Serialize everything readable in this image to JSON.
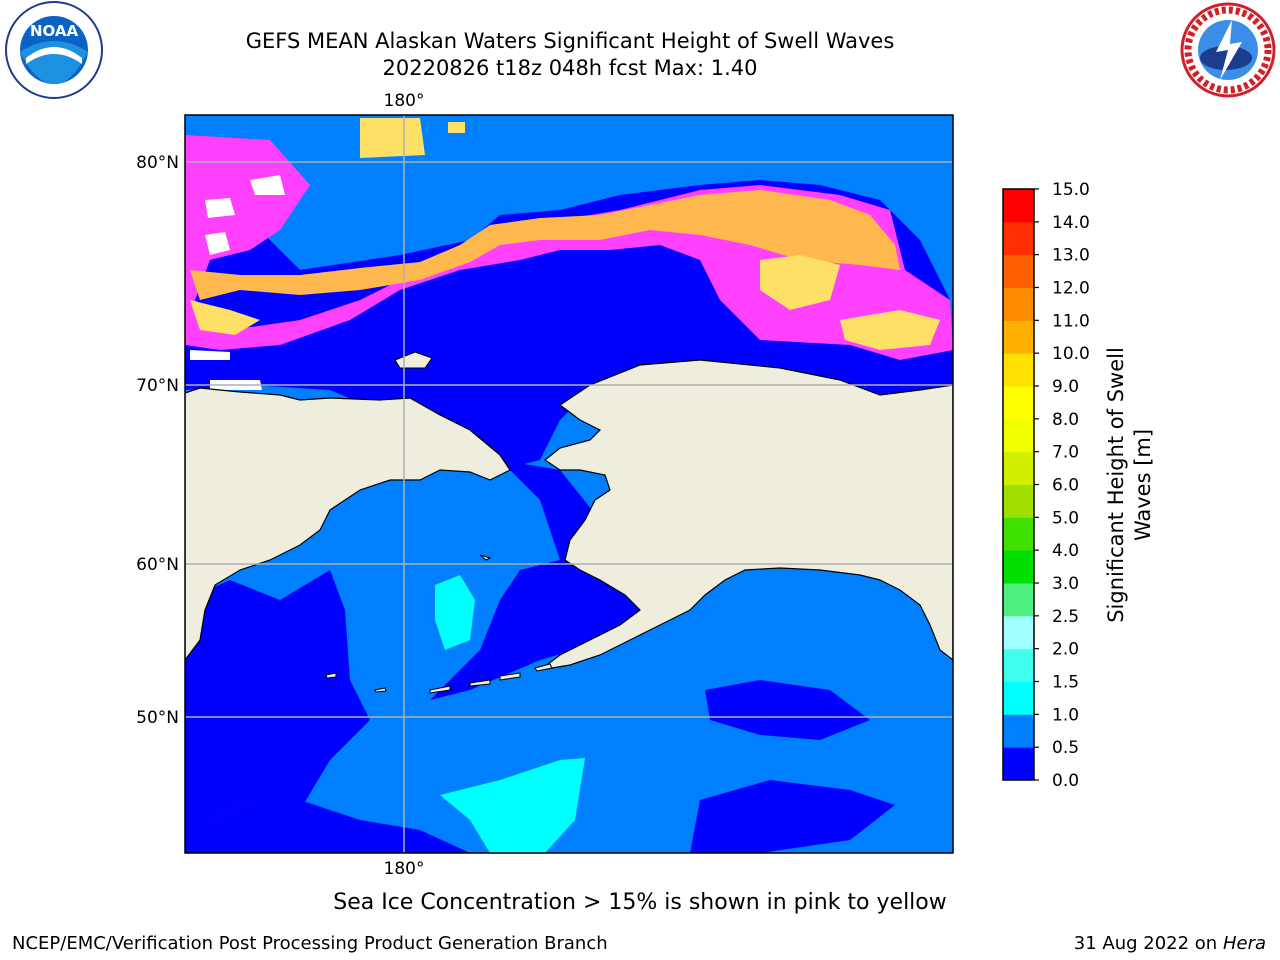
{
  "header": {
    "title_line1": "GEFS MEAN Alaskan Waters Significant Height of Swell Waves",
    "title_line2": "20220826 t18z 048h fcst   Max: 1.40"
  },
  "logos": {
    "left": {
      "name": "noaa-logo",
      "text": "NOAA"
    },
    "right": {
      "name": "nws-logo",
      "text": "NATIONAL WEATHER SERVICE"
    }
  },
  "map": {
    "lon_label_top": "180°",
    "lon_label_bottom": "180°",
    "lat_labels": [
      "80°N",
      "70°N",
      "60°N",
      "50°N"
    ],
    "colors": {
      "land": "#efedde",
      "swell_0_0.5": "#0000ff",
      "swell_0.5_1.0": "#0080ff",
      "swell_1.0_1.5": "#00ffff",
      "ice_pink": "#ff40ff",
      "ice_orange": "#ffb84d",
      "ice_yellow": "#ffe066"
    }
  },
  "colorbar": {
    "label_line1": "Significant Height of Swell",
    "label_line2": "Waves [m]",
    "ticks": [
      "0.0",
      "0.5",
      "1.0",
      "1.5",
      "2.0",
      "2.5",
      "3.0",
      "4.0",
      "5.0",
      "6.0",
      "7.0",
      "8.0",
      "9.0",
      "10.0",
      "11.0",
      "12.0",
      "13.0",
      "14.0",
      "15.0"
    ],
    "colors": [
      "#0000ff",
      "#0080ff",
      "#00ffff",
      "#40ffef",
      "#a0ffff",
      "#50f080",
      "#00e000",
      "#40e000",
      "#a0e000",
      "#d0f000",
      "#f0ff00",
      "#ffff00",
      "#ffe000",
      "#ffb000",
      "#ff8c00",
      "#ff6000",
      "#ff3000",
      "#ff0000"
    ]
  },
  "note": "Sea Ice Concentration > 15% is shown in pink to yellow",
  "footer": {
    "left": "NCEP/EMC/Verification Post Processing Product Generation Branch",
    "right_date": "31 Aug 2022 on",
    "right_host": "Hera"
  }
}
